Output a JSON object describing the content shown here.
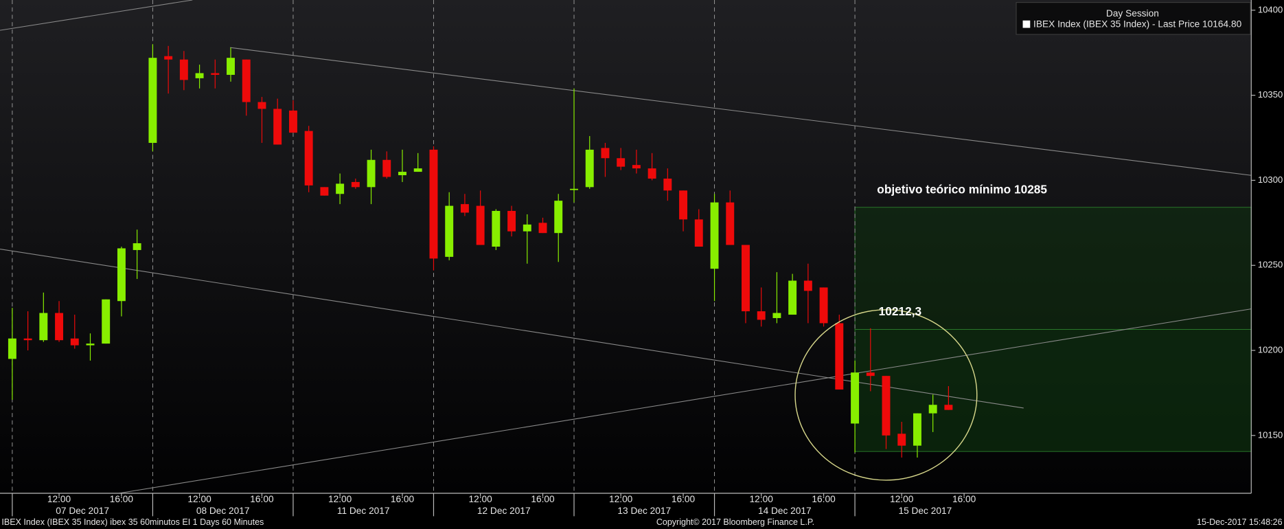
{
  "chart_data": {
    "type": "candlestick",
    "legend_title": "Day Session",
    "legend_entry": "IBEX Index (IBEX 35 Index) - Last Price 10164.80",
    "annotations": [
      "objetivo teórico mínimo 10285",
      "10212,3"
    ],
    "footer_left": "IBEX Index (IBEX 35 Index) ibex 35 60minutos EI 1 Days 60 Minutes",
    "copyright": "Copyright© 2017 Bloomberg Finance L.P.",
    "timestamp": "15-Dec-2017 15:48:26",
    "up_color": "#88ee00",
    "down_color": "#ee0a0a",
    "ylim": [
      10116,
      10406
    ],
    "yticks": [
      10150,
      10200,
      10250,
      10300,
      10350,
      10400
    ],
    "hour_ticks": [
      "12:00",
      "16:00"
    ],
    "days": [
      {
        "date": "07 Dec 2017",
        "open": [
          10195,
          10207,
          10206,
          10222,
          10207,
          10203,
          10204,
          10229,
          10259
        ],
        "high": [
          10225,
          10223,
          10234,
          10229,
          10221,
          10210,
          10230,
          10261,
          10271
        ],
        "low": [
          10171,
          10200,
          10205,
          10205,
          10201,
          10194,
          10204,
          10220,
          10242
        ],
        "close": [
          10207,
          10206,
          10222,
          10206,
          10203,
          10204,
          10230,
          10260,
          10263
        ]
      },
      {
        "date": "08 Dec 2017",
        "open": [
          10322,
          10373,
          10371,
          10360,
          10363,
          10362,
          10371,
          10346,
          10342
        ],
        "high": [
          10380,
          10379,
          10376,
          10368,
          10371,
          10378,
          10371,
          10349,
          10348
        ],
        "low": [
          10317,
          10351,
          10353,
          10354,
          10354,
          10358,
          10338,
          10322,
          10321
        ],
        "close": [
          10372,
          10371,
          10359,
          10363,
          10362,
          10372,
          10346,
          10342,
          10321
        ]
      },
      {
        "date": "11 Dec 2017",
        "open": [
          10341,
          10329,
          10296,
          10292,
          10299,
          10296,
          10312,
          10303,
          10305
        ],
        "high": [
          10347,
          10332,
          10296,
          10304,
          10301,
          10318,
          10317,
          10318,
          10316
        ],
        "low": [
          10328,
          10293,
          10291,
          10286,
          10295,
          10286,
          10301,
          10299,
          10305
        ],
        "close": [
          10328,
          10297,
          10291,
          10298,
          10296,
          10312,
          10302,
          10305,
          10307
        ]
      },
      {
        "date": "12 Dec 2017",
        "open": [
          10318,
          10255,
          10286,
          10285,
          10261,
          10282,
          10270,
          10275,
          10269
        ],
        "high": [
          10320,
          10293,
          10292,
          10294,
          10283,
          10285,
          10280,
          10278,
          10292
        ],
        "low": [
          10247,
          10253,
          10279,
          10262,
          10259,
          10267,
          10251,
          10269,
          10252
        ],
        "close": [
          10254,
          10285,
          10281,
          10262,
          10282,
          10270,
          10274,
          10269,
          10288
        ]
      },
      {
        "date": "13 Dec 2017",
        "open": [
          10295,
          10296,
          10319,
          10313,
          10309,
          10307,
          10301,
          10294,
          10277
        ],
        "high": [
          10354,
          10326,
          10322,
          10319,
          10318,
          10316,
          10307,
          10294,
          10283
        ],
        "low": [
          10287,
          10295,
          10302,
          10306,
          10304,
          10300,
          10288,
          10270,
          10261
        ],
        "close": [
          10295,
          10318,
          10313,
          10308,
          10307,
          10301,
          10294,
          10277,
          10261
        ]
      },
      {
        "date": "14 Dec 2017",
        "open": [
          10248,
          10287,
          10262,
          10223,
          10219,
          10221,
          10241,
          10237,
          10216
        ],
        "high": [
          10292,
          10294,
          10262,
          10237,
          10246,
          10245,
          10251,
          10237,
          10221
        ],
        "low": [
          10229,
          10262,
          10216,
          10214,
          10216,
          10221,
          10216,
          10214,
          10177
        ],
        "close": [
          10287,
          10262,
          10223,
          10218,
          10222,
          10241,
          10235,
          10216,
          10177
        ]
      },
      {
        "date": "15 Dec 2017",
        "open": [
          10157,
          10187,
          10185,
          10151,
          10144,
          10163,
          10168
        ],
        "high": [
          10194,
          10213,
          10185,
          10158,
          10163,
          10174,
          10179
        ],
        "low": [
          10140,
          10176,
          10142,
          10137,
          10137,
          10152,
          10165
        ],
        "close": [
          10187,
          10185,
          10150,
          10144,
          10163,
          10168,
          10165
        ]
      }
    ]
  }
}
